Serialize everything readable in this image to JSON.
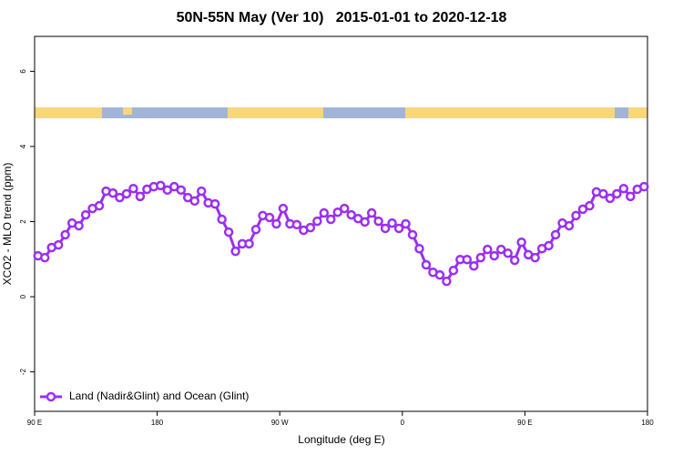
{
  "chart_data": {
    "type": "line",
    "title": "50N-55N May (Ver 10)   2015-01-01 to 2020-12-18",
    "x_label": "Longitude (deg E)",
    "y_label": "XCO2 - MLO trend (ppm)",
    "x": [
      92.5,
      97.5,
      102.5,
      107.5,
      112.5,
      117.5,
      122.5,
      127.5,
      132.5,
      137.5,
      142.5,
      147.5,
      152.5,
      157.5,
      162.5,
      167.5,
      172.5,
      177.5,
      182.5,
      187.5,
      192.5,
      197.5,
      202.5,
      207.5,
      212.5,
      217.5,
      222.5,
      227.5,
      232.5,
      237.5,
      242.5,
      247.5,
      252.5,
      257.5,
      262.5,
      267.5,
      272.5,
      277.5,
      282.5,
      287.5,
      292.5,
      297.5,
      302.5,
      307.5,
      312.5,
      317.5,
      322.5,
      327.5,
      332.5,
      337.5,
      342.5,
      347.5,
      352.5,
      357.5,
      362.5,
      367.5,
      372.5,
      377.5,
      382.5,
      387.5,
      392.5,
      397.5,
      402.5,
      407.5,
      412.5,
      417.5,
      422.5,
      427.5,
      432.5,
      437.5,
      442.5,
      447.5,
      452.5,
      457.5,
      462.5,
      467.5,
      472.5,
      477.5,
      482.5,
      487.5,
      492.5,
      497.5,
      502.5,
      507.5,
      512.5,
      517.5,
      522.5,
      527.5,
      532.5,
      537.5
    ],
    "series": [
      {
        "name": "Land (Nadir&Glint) and Ocean (Glint)",
        "color": "#9b30f0",
        "values": [
          1.09,
          1.04,
          1.31,
          1.38,
          1.65,
          1.96,
          1.89,
          2.18,
          2.35,
          2.42,
          2.81,
          2.76,
          2.64,
          2.74,
          2.88,
          2.67,
          2.86,
          2.93,
          2.96,
          2.84,
          2.93,
          2.84,
          2.64,
          2.55,
          2.81,
          2.5,
          2.47,
          2.06,
          1.72,
          1.21,
          1.41,
          1.41,
          1.79,
          2.16,
          2.11,
          1.94,
          2.35,
          1.94,
          1.92,
          1.77,
          1.84,
          2.01,
          2.23,
          2.06,
          2.25,
          2.35,
          2.18,
          2.08,
          1.99,
          2.23,
          2.01,
          1.82,
          1.96,
          1.82,
          1.94,
          1.65,
          1.28,
          0.85,
          0.65,
          0.58,
          0.41,
          0.7,
          0.99,
          0.99,
          0.82,
          1.04,
          1.26,
          1.09,
          1.26,
          1.16,
          0.97,
          1.45,
          1.12,
          1.04,
          1.28,
          1.36,
          1.65,
          1.96,
          1.89,
          2.16,
          2.33,
          2.42,
          2.79,
          2.74,
          2.62,
          2.74,
          2.88,
          2.67,
          2.86,
          2.93
        ]
      }
    ],
    "xlim": [
      90,
      540
    ],
    "xticks": [
      {
        "value": 90,
        "label": "90 E"
      },
      180,
      {
        "value": 270,
        "label": "90 W"
      },
      {
        "value": 360,
        "label": "0"
      },
      {
        "value": 450,
        "label": "90 E"
      },
      {
        "value": 540,
        "label": "180"
      }
    ],
    "ylim": [
      -3.05,
      6.93
    ],
    "yticks": [
      -2,
      0,
      2,
      4,
      6
    ],
    "grid": false,
    "legend": "bottom-left"
  }
}
